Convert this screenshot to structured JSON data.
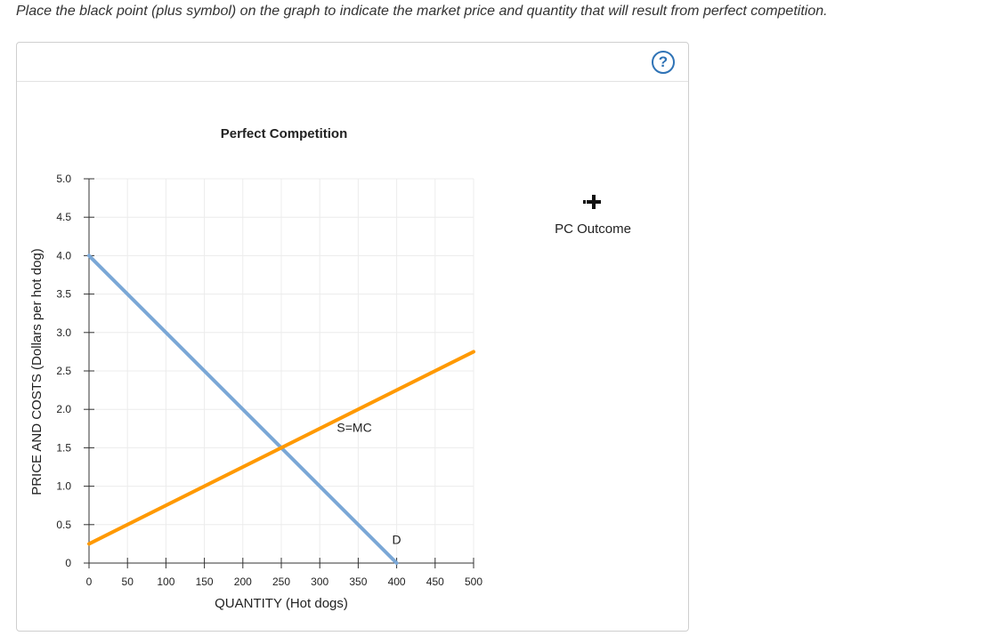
{
  "instruction": "Place the black point (plus symbol) on the graph to indicate the market price and quantity that will result from perfect competition.",
  "help": {
    "label": "?"
  },
  "palette": {
    "tool_label": "PC Outcome",
    "icon": "plus-point-icon"
  },
  "colors": {
    "demand": "#7aa7d6",
    "supply": "#ff9900",
    "grid": "#ececec",
    "axis": "#333333",
    "help": "#2f73b6"
  },
  "chart_data": {
    "type": "line",
    "title": "Perfect Competition",
    "xlabel": "QUANTITY (Hot dogs)",
    "ylabel": "PRICE AND COSTS (Dollars per hot dog)",
    "xlim": [
      0,
      500
    ],
    "ylim": [
      0,
      5
    ],
    "x_ticks": [
      0,
      50,
      100,
      150,
      200,
      250,
      300,
      350,
      400,
      450,
      500
    ],
    "y_ticks": [
      0,
      0.5,
      1.0,
      1.5,
      2.0,
      2.5,
      3.0,
      3.5,
      4.0,
      4.5,
      5.0
    ],
    "x_tick_labels": [
      "0",
      "50",
      "100",
      "150",
      "200",
      "250",
      "300",
      "350",
      "400",
      "450",
      "500"
    ],
    "y_tick_labels": [
      "0",
      "0.5",
      "1.0",
      "1.5",
      "2.0",
      "2.5",
      "3.0",
      "3.5",
      "4.0",
      "4.5",
      "5.0"
    ],
    "grid": true,
    "series": [
      {
        "name": "D",
        "x": [
          0,
          400
        ],
        "y": [
          4.0,
          0
        ],
        "color": "#7aa7d6"
      },
      {
        "name": "S=MC",
        "x": [
          0,
          500
        ],
        "y": [
          0.25,
          2.75
        ],
        "color": "#ff9900"
      }
    ],
    "annotations": [
      {
        "text": "S=MC",
        "x": 345,
        "y": 1.71
      },
      {
        "text": "D",
        "x": 400,
        "y": 0.25
      }
    ]
  }
}
